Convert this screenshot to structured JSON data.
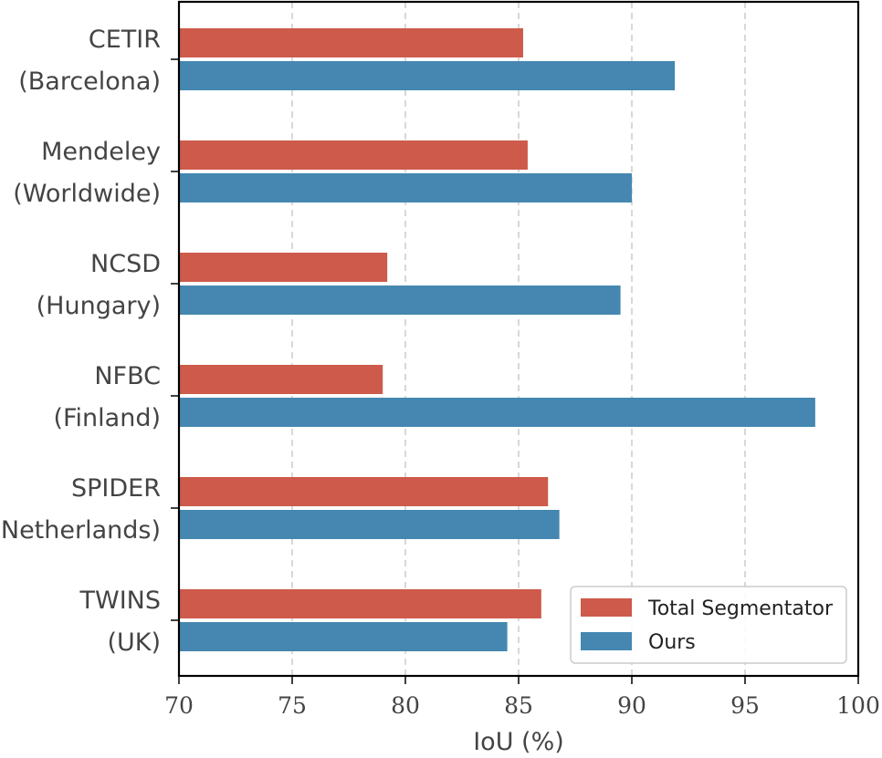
{
  "chart_data": {
    "type": "bar",
    "orientation": "horizontal",
    "title": "",
    "xlabel": "IoU (%)",
    "ylabel": "",
    "xlim": [
      70,
      100
    ],
    "xticks": [
      70,
      75,
      80,
      85,
      90,
      95,
      100
    ],
    "grid": "vertical dashed",
    "legend_position": "bottom-right",
    "categories": [
      [
        "CETIR",
        "(Barcelona)"
      ],
      [
        "Mendeley",
        "(Worldwide)"
      ],
      [
        "NCSD",
        "(Hungary)"
      ],
      [
        "NFBC",
        "(Finland)"
      ],
      [
        "SPIDER",
        "(Netherlands)"
      ],
      [
        "TWINS",
        "(UK)"
      ]
    ],
    "series": [
      {
        "name": "Total Segmentator",
        "color": "#cd5a4a",
        "values": [
          85.2,
          85.4,
          79.2,
          79.0,
          86.3,
          86.0
        ]
      },
      {
        "name": "Ours",
        "color": "#4587b0",
        "values": [
          91.9,
          90.0,
          89.5,
          98.1,
          86.8,
          84.5
        ]
      }
    ]
  }
}
